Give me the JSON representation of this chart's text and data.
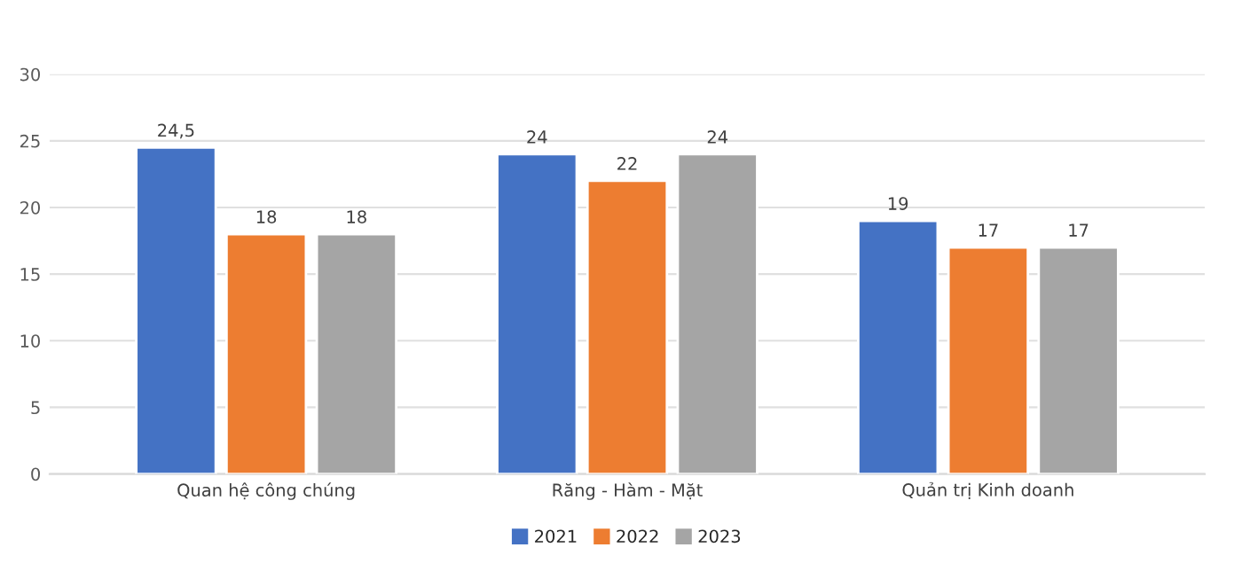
{
  "chart_data": {
    "type": "bar",
    "categories": [
      "Quan hệ công chúng",
      "Răng - Hàm - Mặt",
      "Quản trị Kinh doanh"
    ],
    "series": [
      {
        "name": "2021",
        "color": "#4472c4",
        "values": [
          24.5,
          24,
          19
        ],
        "value_labels": [
          "24,5",
          "24",
          "19"
        ]
      },
      {
        "name": "2022",
        "color": "#ed7d31",
        "values": [
          18,
          22,
          17
        ],
        "value_labels": [
          "18",
          "22",
          "17"
        ]
      },
      {
        "name": "2023",
        "color": "#a5a5a5",
        "values": [
          18,
          24,
          17
        ],
        "value_labels": [
          "18",
          "24",
          "17"
        ]
      }
    ],
    "ylim": [
      0,
      30
    ],
    "yticks": [
      0,
      5,
      10,
      15,
      20,
      25,
      30
    ],
    "grid": "y",
    "legend": "bottom"
  }
}
